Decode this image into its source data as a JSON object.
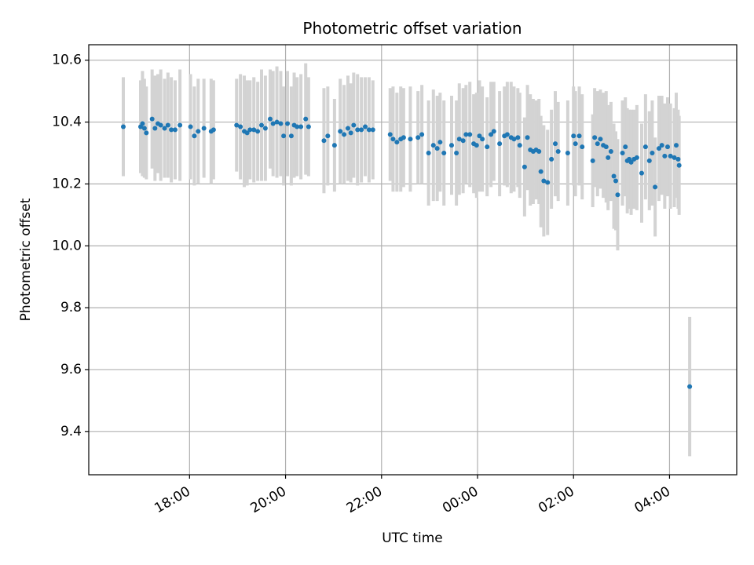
{
  "chart_data": {
    "type": "scatter",
    "title": "Photometric offset variation",
    "xlabel": "UTC time",
    "ylabel": "Photometric offset",
    "xlim_hours": [
      15.9,
      29.4
    ],
    "ylim": [
      9.26,
      10.65
    ],
    "grid": true,
    "colors": {
      "point": "#1f77b4",
      "errorbar": "#d3d3d3",
      "grid": "#b0b0b0"
    },
    "x_ticks": [
      {
        "hour": 18,
        "label": "18:00"
      },
      {
        "hour": 20,
        "label": "20:00"
      },
      {
        "hour": 22,
        "label": "22:00"
      },
      {
        "hour": 24,
        "label": "00:00"
      },
      {
        "hour": 26,
        "label": "02:00"
      },
      {
        "hour": 28,
        "label": "04:00"
      }
    ],
    "y_ticks": [
      {
        "value": 9.4,
        "label": "9.4"
      },
      {
        "value": 9.6,
        "label": "9.6"
      },
      {
        "value": 9.8,
        "label": "9.8"
      },
      {
        "value": 10.0,
        "label": "10.0"
      },
      {
        "value": 10.2,
        "label": "10.2"
      },
      {
        "value": 10.4,
        "label": "10.4"
      },
      {
        "value": 10.6,
        "label": "10.6"
      }
    ],
    "points": [
      [
        16.62,
        10.385,
        0.16
      ],
      [
        16.98,
        10.385,
        0.15
      ],
      [
        17.02,
        10.395,
        0.17
      ],
      [
        17.06,
        10.38,
        0.16
      ],
      [
        17.1,
        10.365,
        0.15
      ],
      [
        17.22,
        10.41,
        0.16
      ],
      [
        17.28,
        10.38,
        0.17
      ],
      [
        17.34,
        10.395,
        0.16
      ],
      [
        17.4,
        10.39,
        0.18
      ],
      [
        17.48,
        10.38,
        0.16
      ],
      [
        17.55,
        10.39,
        0.17
      ],
      [
        17.62,
        10.375,
        0.17
      ],
      [
        17.7,
        10.375,
        0.16
      ],
      [
        17.8,
        10.39,
        0.18
      ],
      [
        18.02,
        10.385,
        0.17
      ],
      [
        18.1,
        10.355,
        0.16
      ],
      [
        18.18,
        10.37,
        0.17
      ],
      [
        18.3,
        10.38,
        0.16
      ],
      [
        18.45,
        10.37,
        0.17
      ],
      [
        18.5,
        10.375,
        0.16
      ],
      [
        18.98,
        10.39,
        0.15
      ],
      [
        19.06,
        10.385,
        0.17
      ],
      [
        19.14,
        10.37,
        0.18
      ],
      [
        19.2,
        10.365,
        0.17
      ],
      [
        19.26,
        10.375,
        0.16
      ],
      [
        19.34,
        10.375,
        0.17
      ],
      [
        19.42,
        10.37,
        0.16
      ],
      [
        19.5,
        10.39,
        0.18
      ],
      [
        19.58,
        10.38,
        0.17
      ],
      [
        19.68,
        10.41,
        0.16
      ],
      [
        19.74,
        10.395,
        0.17
      ],
      [
        19.82,
        10.4,
        0.18
      ],
      [
        19.9,
        10.395,
        0.17
      ],
      [
        19.96,
        10.355,
        0.16
      ],
      [
        20.04,
        10.395,
        0.17
      ],
      [
        20.12,
        10.355,
        0.16
      ],
      [
        20.18,
        10.39,
        0.17
      ],
      [
        20.24,
        10.385,
        0.16
      ],
      [
        20.32,
        10.385,
        0.17
      ],
      [
        20.42,
        10.41,
        0.18
      ],
      [
        20.48,
        10.385,
        0.16
      ],
      [
        20.8,
        10.34,
        0.17
      ],
      [
        20.88,
        10.355,
        0.16
      ],
      [
        21.02,
        10.325,
        0.15
      ],
      [
        21.14,
        10.37,
        0.17
      ],
      [
        21.22,
        10.36,
        0.16
      ],
      [
        21.3,
        10.38,
        0.17
      ],
      [
        21.36,
        10.365,
        0.16
      ],
      [
        21.42,
        10.39,
        0.17
      ],
      [
        21.5,
        10.375,
        0.18
      ],
      [
        21.58,
        10.375,
        0.17
      ],
      [
        21.66,
        10.385,
        0.16
      ],
      [
        21.74,
        10.375,
        0.17
      ],
      [
        21.82,
        10.375,
        0.16
      ],
      [
        22.18,
        10.36,
        0.15
      ],
      [
        22.24,
        10.345,
        0.17
      ],
      [
        22.32,
        10.335,
        0.16
      ],
      [
        22.4,
        10.345,
        0.17
      ],
      [
        22.46,
        10.35,
        0.16
      ],
      [
        22.6,
        10.345,
        0.17
      ],
      [
        22.76,
        10.35,
        0.15
      ],
      [
        22.84,
        10.36,
        0.16
      ],
      [
        22.98,
        10.3,
        0.17
      ],
      [
        23.08,
        10.325,
        0.18
      ],
      [
        23.16,
        10.315,
        0.17
      ],
      [
        23.22,
        10.335,
        0.16
      ],
      [
        23.3,
        10.3,
        0.17
      ],
      [
        23.46,
        10.325,
        0.16
      ],
      [
        23.56,
        10.3,
        0.17
      ],
      [
        23.62,
        10.345,
        0.18
      ],
      [
        23.7,
        10.34,
        0.17
      ],
      [
        23.76,
        10.36,
        0.16
      ],
      [
        23.84,
        10.36,
        0.17
      ],
      [
        23.92,
        10.33,
        0.16
      ],
      [
        23.98,
        10.325,
        0.17
      ],
      [
        24.04,
        10.355,
        0.18
      ],
      [
        24.1,
        10.345,
        0.17
      ],
      [
        24.2,
        10.32,
        0.16
      ],
      [
        24.28,
        10.36,
        0.17
      ],
      [
        24.34,
        10.37,
        0.16
      ],
      [
        24.46,
        10.33,
        0.17
      ],
      [
        24.56,
        10.355,
        0.16
      ],
      [
        24.62,
        10.36,
        0.17
      ],
      [
        24.7,
        10.35,
        0.18
      ],
      [
        24.76,
        10.345,
        0.17
      ],
      [
        24.84,
        10.35,
        0.16
      ],
      [
        24.88,
        10.325,
        0.17
      ],
      [
        24.98,
        10.255,
        0.16
      ],
      [
        25.04,
        10.35,
        0.17
      ],
      [
        25.1,
        10.31,
        0.18
      ],
      [
        25.16,
        10.305,
        0.17
      ],
      [
        25.22,
        10.31,
        0.16
      ],
      [
        25.28,
        10.305,
        0.17
      ],
      [
        25.32,
        10.24,
        0.18
      ],
      [
        25.38,
        10.21,
        0.18
      ],
      [
        25.46,
        10.205,
        0.17
      ],
      [
        25.54,
        10.28,
        0.16
      ],
      [
        25.62,
        10.33,
        0.17
      ],
      [
        25.68,
        10.305,
        0.16
      ],
      [
        25.88,
        10.3,
        0.17
      ],
      [
        26.0,
        10.355,
        0.16
      ],
      [
        26.04,
        10.33,
        0.17
      ],
      [
        26.12,
        10.355,
        0.16
      ],
      [
        26.18,
        10.32,
        0.17
      ],
      [
        26.4,
        10.275,
        0.15
      ],
      [
        26.44,
        10.35,
        0.16
      ],
      [
        26.5,
        10.33,
        0.17
      ],
      [
        26.56,
        10.345,
        0.16
      ],
      [
        26.62,
        10.325,
        0.17
      ],
      [
        26.68,
        10.32,
        0.18
      ],
      [
        26.72,
        10.285,
        0.17
      ],
      [
        26.78,
        10.305,
        0.16
      ],
      [
        26.84,
        10.225,
        0.17
      ],
      [
        26.88,
        10.21,
        0.16
      ],
      [
        26.92,
        10.165,
        0.18
      ],
      [
        27.02,
        10.3,
        0.17
      ],
      [
        27.08,
        10.32,
        0.16
      ],
      [
        27.12,
        10.275,
        0.17
      ],
      [
        27.16,
        10.28,
        0.16
      ],
      [
        27.2,
        10.27,
        0.17
      ],
      [
        27.26,
        10.28,
        0.16
      ],
      [
        27.32,
        10.285,
        0.17
      ],
      [
        27.42,
        10.235,
        0.16
      ],
      [
        27.5,
        10.32,
        0.17
      ],
      [
        27.58,
        10.275,
        0.16
      ],
      [
        27.64,
        10.3,
        0.17
      ],
      [
        27.7,
        10.19,
        0.16
      ],
      [
        27.78,
        10.315,
        0.17
      ],
      [
        27.84,
        10.325,
        0.16
      ],
      [
        27.9,
        10.29,
        0.17
      ],
      [
        27.96,
        10.32,
        0.16
      ],
      [
        28.02,
        10.29,
        0.17
      ],
      [
        28.1,
        10.285,
        0.16
      ],
      [
        28.14,
        10.325,
        0.17
      ],
      [
        28.18,
        10.28,
        0.16
      ],
      [
        28.2,
        10.26,
        0.16
      ],
      [
        28.42,
        9.545,
        0.225
      ]
    ]
  }
}
